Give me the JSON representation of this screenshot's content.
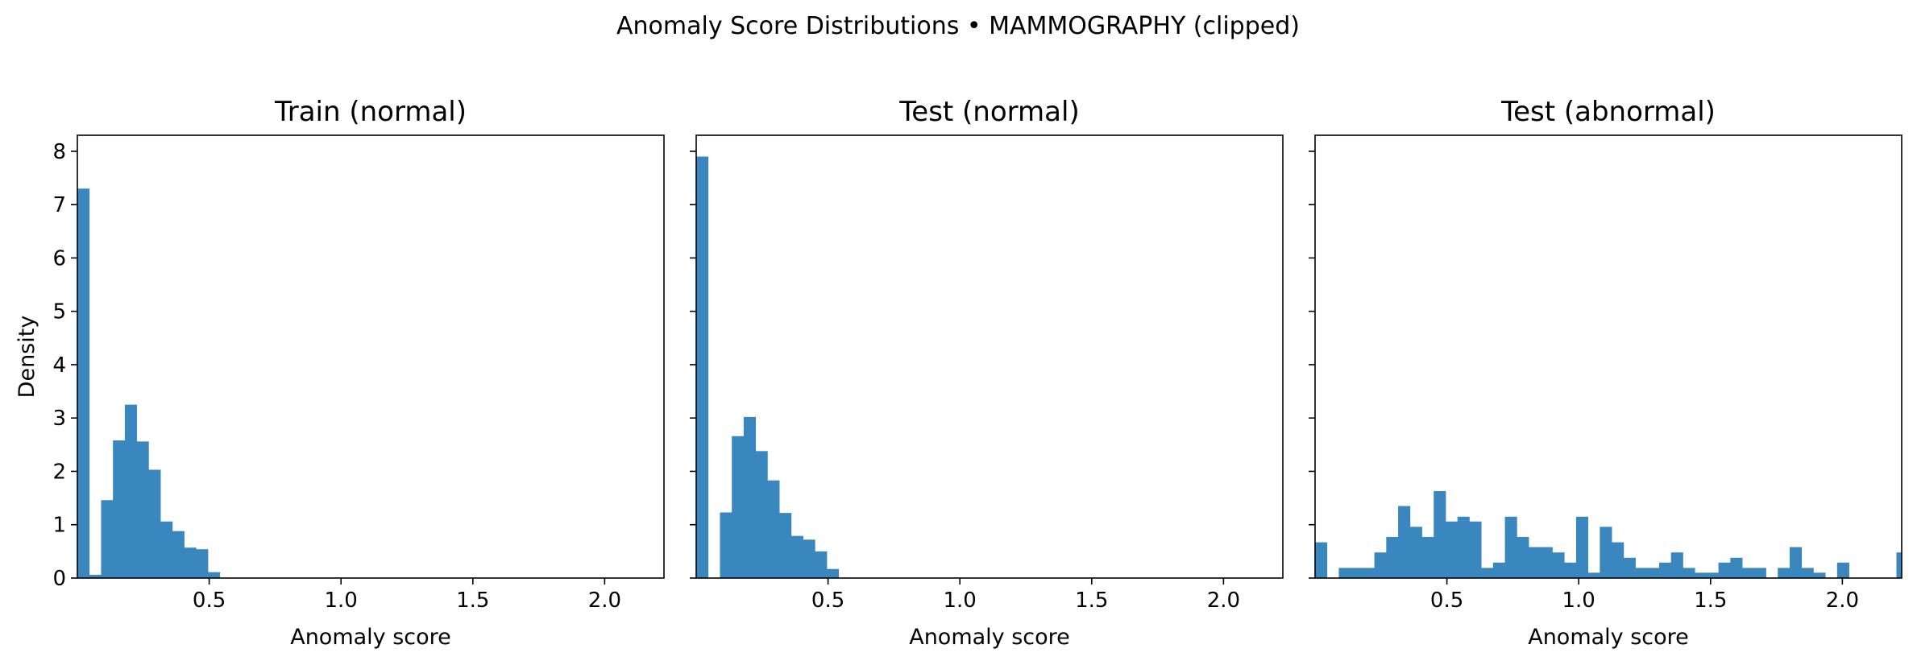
{
  "figure": {
    "title": "Anomaly Score Distributions • MAMMOGRAPHY (clipped)"
  },
  "colors": {
    "bar": "#3a86be"
  },
  "chart_data": [
    {
      "type": "bar",
      "title": "Train (normal)",
      "xlabel": "Anomaly score",
      "ylabel": "Density",
      "xlim": [
        0.0,
        2.225
      ],
      "ylim": [
        0,
        8.3
      ],
      "xticks": [
        0.5,
        1.0,
        1.5,
        2.0
      ],
      "xtick_labels": [
        "0.5",
        "1.0",
        "1.5",
        "2.0"
      ],
      "yticks": [
        0,
        1,
        2,
        3,
        4,
        5,
        6,
        7,
        8
      ],
      "ytick_labels": [
        "0",
        "1",
        "2",
        "3",
        "4",
        "5",
        "6",
        "7",
        "8"
      ],
      "bin_edges": [
        0.0,
        0.045,
        0.09,
        0.135,
        0.18,
        0.225,
        0.27,
        0.315,
        0.36,
        0.405,
        0.45,
        0.495,
        0.54
      ],
      "values": [
        7.3,
        0.06,
        1.46,
        2.58,
        3.25,
        2.56,
        2.03,
        1.06,
        0.88,
        0.57,
        0.54,
        0.11
      ]
    },
    {
      "type": "bar",
      "title": "Test (normal)",
      "xlabel": "Anomaly score",
      "ylabel": "",
      "xlim": [
        0.0,
        2.225
      ],
      "ylim": [
        0,
        8.3
      ],
      "xticks": [
        0.5,
        1.0,
        1.5,
        2.0
      ],
      "xtick_labels": [
        "0.5",
        "1.0",
        "1.5",
        "2.0"
      ],
      "yticks": [
        0,
        1,
        2,
        3,
        4,
        5,
        6,
        7,
        8
      ],
      "ytick_labels": [],
      "bin_edges": [
        0.0,
        0.045,
        0.09,
        0.135,
        0.18,
        0.225,
        0.27,
        0.315,
        0.36,
        0.405,
        0.45,
        0.495,
        0.54
      ],
      "values": [
        7.9,
        0.0,
        1.23,
        2.66,
        3.02,
        2.38,
        1.83,
        1.22,
        0.79,
        0.72,
        0.5,
        0.17
      ]
    },
    {
      "type": "bar",
      "title": "Test (abnormal)",
      "xlabel": "Anomaly score",
      "ylabel": "",
      "xlim": [
        0.0,
        2.225
      ],
      "ylim": [
        0,
        8.3
      ],
      "xticks": [
        0.5,
        1.0,
        1.5,
        2.0
      ],
      "xtick_labels": [
        "0.5",
        "1.0",
        "1.5",
        "2.0"
      ],
      "yticks": [
        0,
        1,
        2,
        3,
        4,
        5,
        6,
        7,
        8
      ],
      "ytick_labels": [],
      "bin_edges": [
        0.0,
        0.045,
        0.09,
        0.135,
        0.18,
        0.225,
        0.27,
        0.315,
        0.36,
        0.405,
        0.45,
        0.495,
        0.54,
        0.585,
        0.63,
        0.675,
        0.72,
        0.765,
        0.81,
        0.855,
        0.9,
        0.945,
        0.99,
        1.035,
        1.08,
        1.125,
        1.17,
        1.215,
        1.26,
        1.305,
        1.35,
        1.395,
        1.44,
        1.485,
        1.53,
        1.575,
        1.62,
        1.665,
        1.71,
        1.755,
        1.8,
        1.845,
        1.89,
        1.935,
        1.98,
        2.025,
        2.07,
        2.115,
        2.16,
        2.205,
        2.25
      ],
      "values": [
        0.67,
        0.0,
        0.19,
        0.19,
        0.19,
        0.48,
        0.77,
        1.35,
        0.96,
        0.77,
        1.63,
        1.06,
        1.15,
        1.06,
        0.19,
        0.29,
        1.15,
        0.77,
        0.58,
        0.58,
        0.48,
        0.29,
        1.15,
        0.1,
        0.96,
        0.67,
        0.38,
        0.19,
        0.19,
        0.29,
        0.48,
        0.19,
        0.1,
        0.1,
        0.29,
        0.38,
        0.19,
        0.19,
        0.0,
        0.19,
        0.58,
        0.19,
        0.1,
        0.0,
        0.29,
        0.0,
        0.0,
        0.0,
        0.0,
        0.48
      ]
    }
  ]
}
